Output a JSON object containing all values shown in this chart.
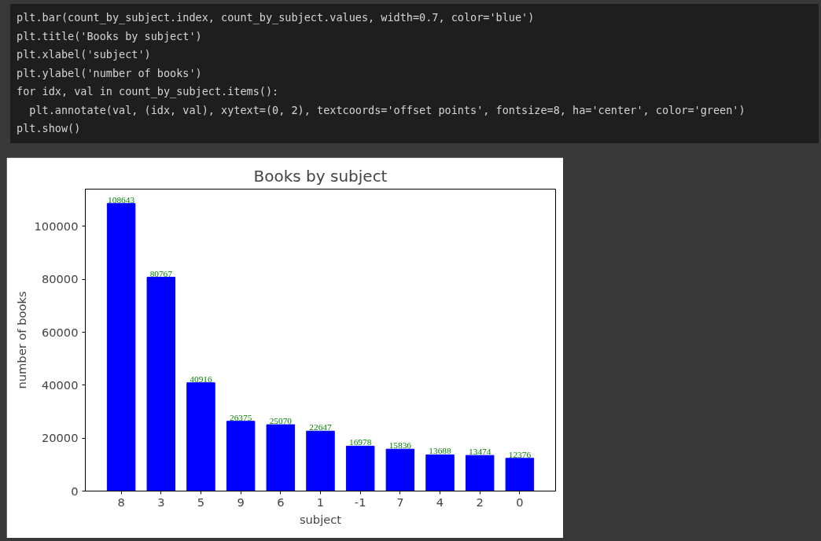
{
  "chart_data": {
    "type": "bar",
    "title": "Books by subject",
    "xlabel": "subject",
    "ylabel": "number of books",
    "categories": [
      "8",
      "3",
      "5",
      "9",
      "6",
      "1",
      "-1",
      "7",
      "4",
      "2",
      "0"
    ],
    "values": [
      108643,
      80767,
      40916,
      26375,
      25070,
      22647,
      16978,
      15836,
      13688,
      13474,
      12376
    ],
    "color": "#0000ff",
    "data_labels": true,
    "ylim": [
      0,
      114075
    ],
    "yticks": [
      0,
      20000,
      40000,
      60000,
      80000,
      100000
    ],
    "grid": false,
    "annotations": [
      "plt.bar(count_by_subject.index, count_by_subject.values, width=0.7, color='blue')",
      "plt.title('Books by subject')",
      "plt.xlabel('subject')",
      "plt.ylabel('number of books')",
      "for idx, val in count_by_subject.items():",
      "  plt.annotate(val, (idx, val), xytext=(0, 2), textcoords='offset points', fontsize=8, ha='center', color='green')",
      "plt.show()"
    ]
  }
}
